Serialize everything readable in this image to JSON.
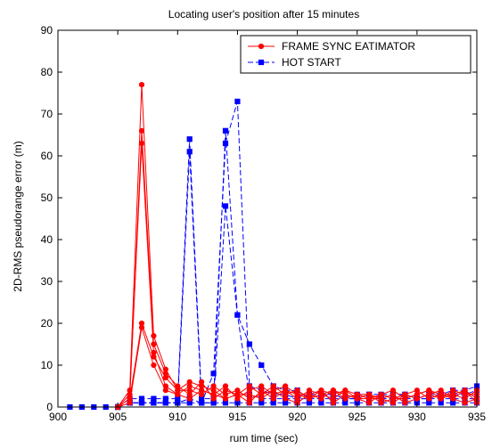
{
  "chart_data": {
    "type": "line",
    "title": "Locating user's position after 15 minutes",
    "xlabel": "rum time (sec)",
    "ylabel": "2D-RMS pseudorange error (m)",
    "xlim": [
      900,
      935
    ],
    "ylim": [
      0,
      90
    ],
    "xticks": [
      900,
      905,
      910,
      915,
      920,
      925,
      930,
      935
    ],
    "yticks": [
      0,
      10,
      20,
      30,
      40,
      50,
      60,
      70,
      80,
      90
    ],
    "grid": false,
    "legend": {
      "placement": "top-right"
    },
    "series": [
      {
        "name": "FRAME SYNC EATIMATOR",
        "color": "#ff0000",
        "marker": "circle",
        "dash": "solid",
        "runs": [
          {
            "x": [
              905,
              906,
              907,
              908,
              909,
              910,
              911,
              912,
              913,
              914,
              915,
              916,
              917,
              918,
              919,
              920,
              921,
              922,
              923,
              924,
              925,
              926,
              927,
              928,
              929,
              930,
              931,
              932,
              933,
              934,
              935
            ],
            "y": [
              0,
              4,
              77,
              17,
              9,
              4,
              6,
              5,
              4,
              2,
              3,
              1,
              4,
              2,
              4,
              3,
              2,
              4,
              1,
              3,
              2,
              3,
              2,
              1,
              3,
              2,
              3,
              4,
              2,
              1,
              2
            ]
          },
          {
            "x": [
              905,
              906,
              907,
              908,
              909,
              910,
              911,
              912,
              913,
              914,
              915,
              916,
              917,
              918,
              919,
              920,
              921,
              922,
              923,
              924,
              925,
              926,
              927,
              928,
              929,
              930,
              931,
              932,
              933,
              934,
              935
            ],
            "y": [
              0,
              2,
              66,
              15,
              8,
              5,
              3,
              6,
              2,
              4,
              3,
              5,
              3,
              4,
              2,
              1,
              3,
              2,
              4,
              3,
              2,
              1,
              3,
              2,
              2,
              3,
              4,
              2,
              3,
              4,
              1
            ]
          },
          {
            "x": [
              905,
              906,
              907,
              908,
              909,
              910,
              911,
              912,
              913,
              914,
              915,
              916,
              917,
              918,
              919,
              920,
              921,
              922,
              923,
              924,
              925,
              926,
              927,
              928,
              929,
              930,
              931,
              932,
              933,
              934,
              935
            ],
            "y": [
              0,
              3,
              63,
              13,
              5,
              3,
              5,
              4,
              3,
              5,
              2,
              4,
              5,
              3,
              4,
              2,
              4,
              3,
              2,
              4,
              3,
              2,
              2,
              3,
              1,
              2,
              3,
              2,
              4,
              3,
              3
            ]
          },
          {
            "x": [
              905,
              906,
              907,
              908,
              909,
              910,
              911,
              912,
              913,
              914,
              915,
              916,
              917,
              918,
              919,
              920,
              921,
              922,
              923,
              924,
              925,
              926,
              927,
              928,
              929,
              930,
              931,
              932,
              933,
              934,
              935
            ],
            "y": [
              0,
              2,
              20,
              12,
              7,
              4,
              4,
              3,
              5,
              3,
              4,
              2,
              3,
              5,
              3,
              4,
              2,
              3,
              4,
              2,
              3,
              3,
              1,
              2,
              3,
              4,
              2,
              3,
              3,
              2,
              4
            ]
          },
          {
            "x": [
              905,
              906,
              907,
              908,
              909,
              910,
              911,
              912,
              913,
              914,
              915,
              916,
              917,
              918,
              919,
              920,
              921,
              922,
              923,
              924,
              925,
              926,
              927,
              928,
              929,
              930,
              931,
              932,
              933,
              934,
              935
            ],
            "y": [
              0,
              1,
              19,
              10,
              4,
              3,
              2,
              4,
              3,
              2,
              3,
              3,
              2,
              4,
              5,
              3,
              3,
              4,
              3,
              4,
              2,
              2,
              3,
              4,
              2,
              3,
              4,
              3,
              2,
              4,
              2
            ]
          }
        ]
      },
      {
        "name": "HOT START",
        "color": "#0000ff",
        "marker": "square",
        "dash": "dashed",
        "runs": [
          {
            "x": [
              901,
              902,
              903,
              904,
              905,
              906,
              907,
              908,
              909,
              910,
              911,
              912,
              913,
              914,
              915,
              916,
              917,
              918,
              919,
              920,
              921,
              922,
              923,
              924,
              925,
              926,
              927,
              928,
              929,
              930,
              931,
              932,
              933,
              934,
              935
            ],
            "y": [
              0,
              0,
              0,
              0,
              0,
              2,
              2,
              2,
              2,
              2,
              64,
              2,
              2,
              66,
              22,
              15,
              10,
              5,
              4,
              4,
              2,
              3,
              3,
              2,
              3,
              3,
              2,
              3,
              3,
              2,
              2,
              3,
              4,
              4,
              5
            ]
          },
          {
            "x": [
              905,
              906,
              907,
              908,
              909,
              910,
              911,
              912,
              913,
              914,
              915,
              916,
              917,
              918,
              919,
              920,
              921,
              922,
              923,
              924,
              925,
              926,
              927,
              928,
              929,
              930,
              931,
              932,
              933,
              934,
              935
            ],
            "y": [
              0,
              1,
              1,
              1,
              1,
              1,
              61,
              1,
              8,
              63,
              73,
              5,
              4,
              3,
              3,
              2,
              3,
              3,
              3,
              2,
              2,
              3,
              3,
              3,
              3,
              2,
              3,
              3,
              3,
              3,
              4
            ]
          },
          {
            "x": [
              905,
              906,
              907,
              908,
              909,
              910,
              911,
              912,
              913,
              914,
              915,
              916,
              917,
              918,
              919,
              920,
              921,
              922,
              923,
              924,
              925,
              926,
              927,
              928,
              929,
              930,
              931,
              932,
              933,
              934,
              935
            ],
            "y": [
              0,
              1,
              1,
              1,
              1,
              1,
              2,
              1,
              1,
              48,
              22,
              3,
              2,
              2,
              2,
              2,
              2,
              2,
              2,
              2,
              2,
              2,
              2,
              2,
              2,
              2,
              2,
              2,
              2,
              2,
              2
            ]
          },
          {
            "x": [
              905,
              906,
              907,
              908,
              909,
              910,
              911,
              912,
              913,
              914,
              915,
              916,
              917,
              918,
              919,
              920,
              921,
              922,
              923,
              924,
              925,
              926,
              927,
              928,
              929,
              930,
              931,
              932,
              933,
              934,
              935
            ],
            "y": [
              0,
              1,
              1,
              1,
              1,
              1,
              1,
              1,
              1,
              1,
              1,
              1,
              1,
              1,
              1,
              1,
              1,
              1,
              1,
              1,
              1,
              1,
              1,
              1,
              1,
              1,
              1,
              1,
              1,
              1,
              1
            ]
          }
        ]
      }
    ]
  }
}
